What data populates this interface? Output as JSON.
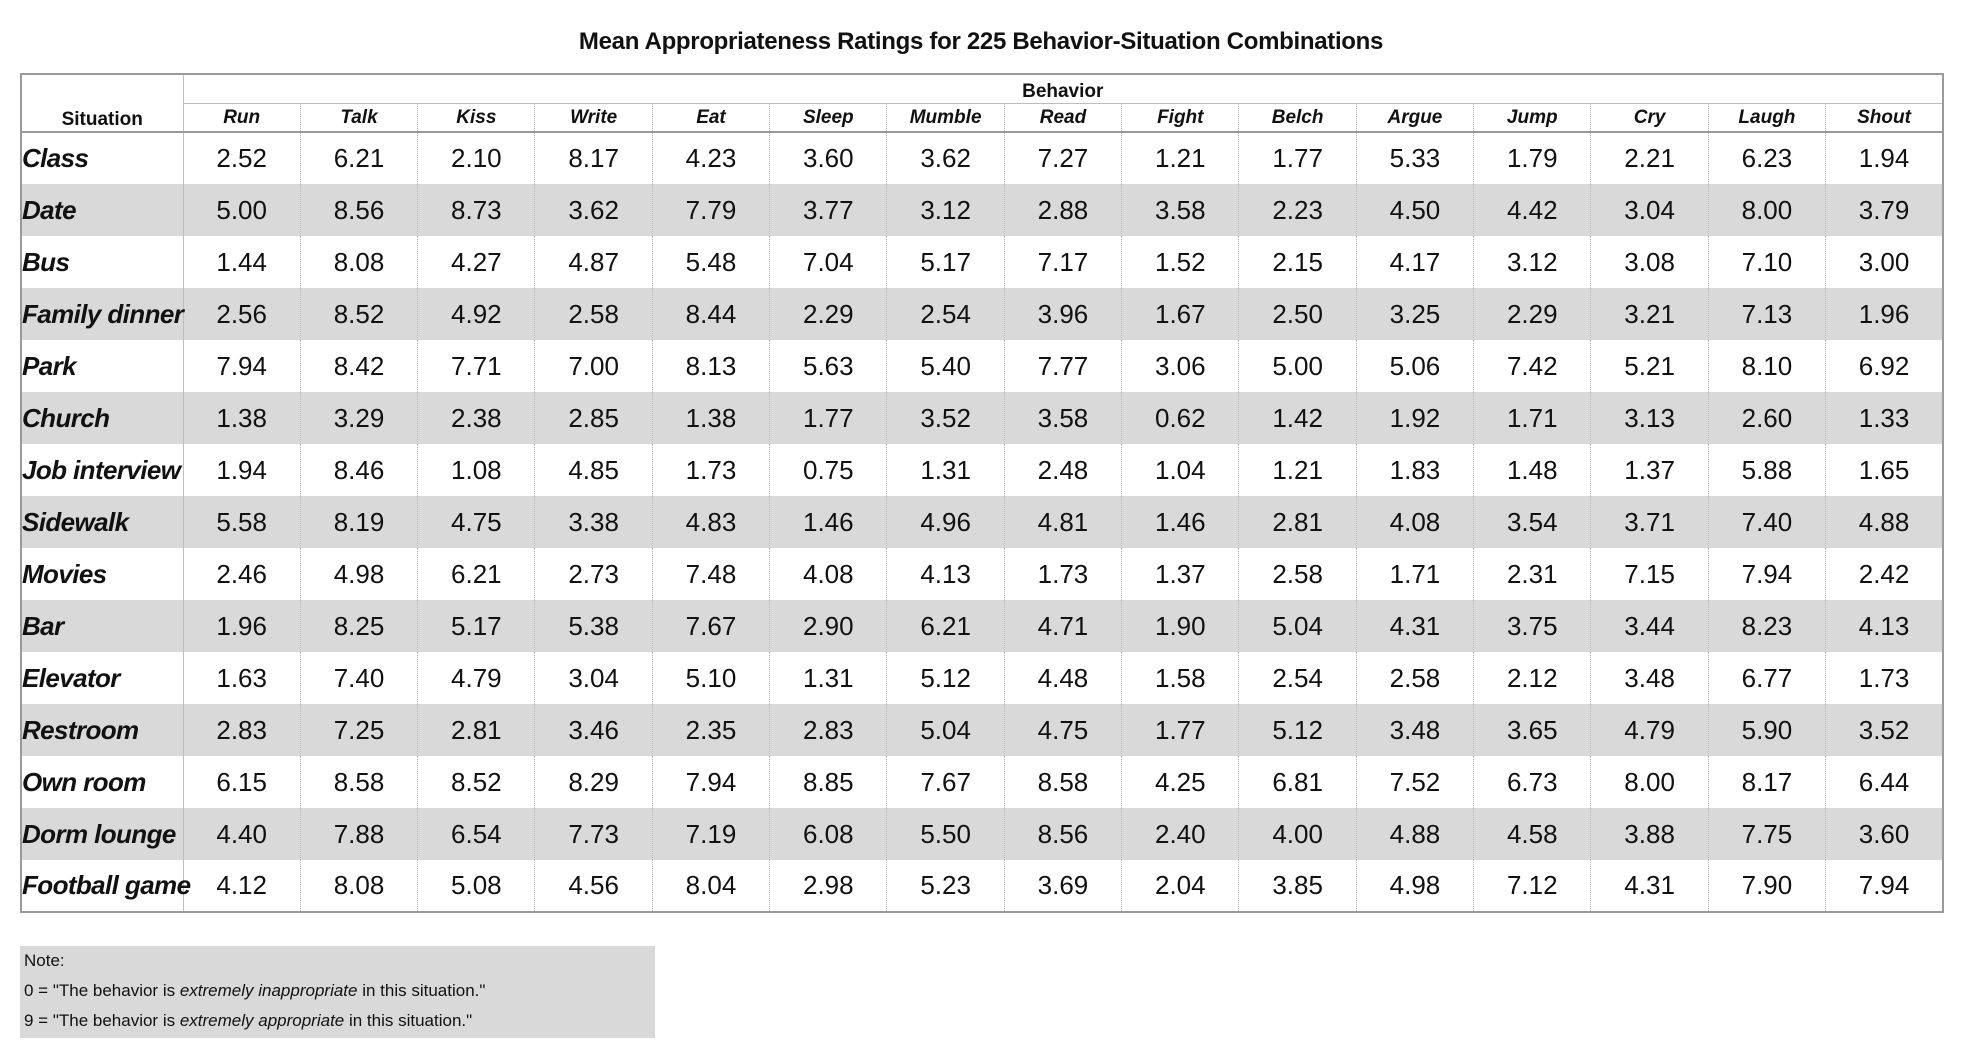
{
  "title": "Mean Appropriateness Ratings for 225 Behavior-Situation Combinations",
  "table": {
    "situation_header": "Situation",
    "behavior_header": "Behavior",
    "behaviors": [
      "Run",
      "Talk",
      "Kiss",
      "Write",
      "Eat",
      "Sleep",
      "Mumble",
      "Read",
      "Fight",
      "Belch",
      "Argue",
      "Jump",
      "Cry",
      "Laugh",
      "Shout"
    ],
    "rows": [
      {
        "situation": "Class",
        "values": [
          "2.52",
          "6.21",
          "2.10",
          "8.17",
          "4.23",
          "3.60",
          "3.62",
          "7.27",
          "1.21",
          "1.77",
          "5.33",
          "1.79",
          "2.21",
          "6.23",
          "1.94"
        ]
      },
      {
        "situation": "Date",
        "values": [
          "5.00",
          "8.56",
          "8.73",
          "3.62",
          "7.79",
          "3.77",
          "3.12",
          "2.88",
          "3.58",
          "2.23",
          "4.50",
          "4.42",
          "3.04",
          "8.00",
          "3.79"
        ]
      },
      {
        "situation": "Bus",
        "values": [
          "1.44",
          "8.08",
          "4.27",
          "4.87",
          "5.48",
          "7.04",
          "5.17",
          "7.17",
          "1.52",
          "2.15",
          "4.17",
          "3.12",
          "3.08",
          "7.10",
          "3.00"
        ]
      },
      {
        "situation": "Family dinner",
        "values": [
          "2.56",
          "8.52",
          "4.92",
          "2.58",
          "8.44",
          "2.29",
          "2.54",
          "3.96",
          "1.67",
          "2.50",
          "3.25",
          "2.29",
          "3.21",
          "7.13",
          "1.96"
        ]
      },
      {
        "situation": "Park",
        "values": [
          "7.94",
          "8.42",
          "7.71",
          "7.00",
          "8.13",
          "5.63",
          "5.40",
          "7.77",
          "3.06",
          "5.00",
          "5.06",
          "7.42",
          "5.21",
          "8.10",
          "6.92"
        ]
      },
      {
        "situation": "Church",
        "values": [
          "1.38",
          "3.29",
          "2.38",
          "2.85",
          "1.38",
          "1.77",
          "3.52",
          "3.58",
          "0.62",
          "1.42",
          "1.92",
          "1.71",
          "3.13",
          "2.60",
          "1.33"
        ]
      },
      {
        "situation": "Job interview",
        "values": [
          "1.94",
          "8.46",
          "1.08",
          "4.85",
          "1.73",
          "0.75",
          "1.31",
          "2.48",
          "1.04",
          "1.21",
          "1.83",
          "1.48",
          "1.37",
          "5.88",
          "1.65"
        ]
      },
      {
        "situation": "Sidewalk",
        "values": [
          "5.58",
          "8.19",
          "4.75",
          "3.38",
          "4.83",
          "1.46",
          "4.96",
          "4.81",
          "1.46",
          "2.81",
          "4.08",
          "3.54",
          "3.71",
          "7.40",
          "4.88"
        ]
      },
      {
        "situation": "Movies",
        "values": [
          "2.46",
          "4.98",
          "6.21",
          "2.73",
          "7.48",
          "4.08",
          "4.13",
          "1.73",
          "1.37",
          "2.58",
          "1.71",
          "2.31",
          "7.15",
          "7.94",
          "2.42"
        ]
      },
      {
        "situation": "Bar",
        "values": [
          "1.96",
          "8.25",
          "5.17",
          "5.38",
          "7.67",
          "2.90",
          "6.21",
          "4.71",
          "1.90",
          "5.04",
          "4.31",
          "3.75",
          "3.44",
          "8.23",
          "4.13"
        ]
      },
      {
        "situation": "Elevator",
        "values": [
          "1.63",
          "7.40",
          "4.79",
          "3.04",
          "5.10",
          "1.31",
          "5.12",
          "4.48",
          "1.58",
          "2.54",
          "2.58",
          "2.12",
          "3.48",
          "6.77",
          "1.73"
        ]
      },
      {
        "situation": "Restroom",
        "values": [
          "2.83",
          "7.25",
          "2.81",
          "3.46",
          "2.35",
          "2.83",
          "5.04",
          "4.75",
          "1.77",
          "5.12",
          "3.48",
          "3.65",
          "4.79",
          "5.90",
          "3.52"
        ]
      },
      {
        "situation": "Own room",
        "values": [
          "6.15",
          "8.58",
          "8.52",
          "8.29",
          "7.94",
          "8.85",
          "7.67",
          "8.58",
          "4.25",
          "6.81",
          "7.52",
          "6.73",
          "8.00",
          "8.17",
          "6.44"
        ]
      },
      {
        "situation": "Dorm lounge",
        "values": [
          "4.40",
          "7.88",
          "6.54",
          "7.73",
          "7.19",
          "6.08",
          "5.50",
          "8.56",
          "2.40",
          "4.00",
          "4.88",
          "4.58",
          "3.88",
          "7.75",
          "3.60"
        ]
      },
      {
        "situation": "Football game",
        "values": [
          "4.12",
          "8.08",
          "5.08",
          "4.56",
          "8.04",
          "2.98",
          "5.23",
          "3.69",
          "2.04",
          "3.85",
          "4.98",
          "7.12",
          "4.31",
          "7.90",
          "7.94"
        ]
      }
    ]
  },
  "note": {
    "heading": "Note:",
    "line0": {
      "prefix": "0 = \"The behavior is ",
      "emphasis": "extremely inappropriate",
      "suffix": " in this situation.\""
    },
    "line9": {
      "prefix": "9 = \"The behavior is ",
      "emphasis": "extremely appropriate",
      "suffix": " in this situation.\""
    }
  },
  "colors": {
    "row_shade": "#d9d9d9",
    "note_background": "#d9d9d9",
    "rule": "#9a9a9a"
  }
}
